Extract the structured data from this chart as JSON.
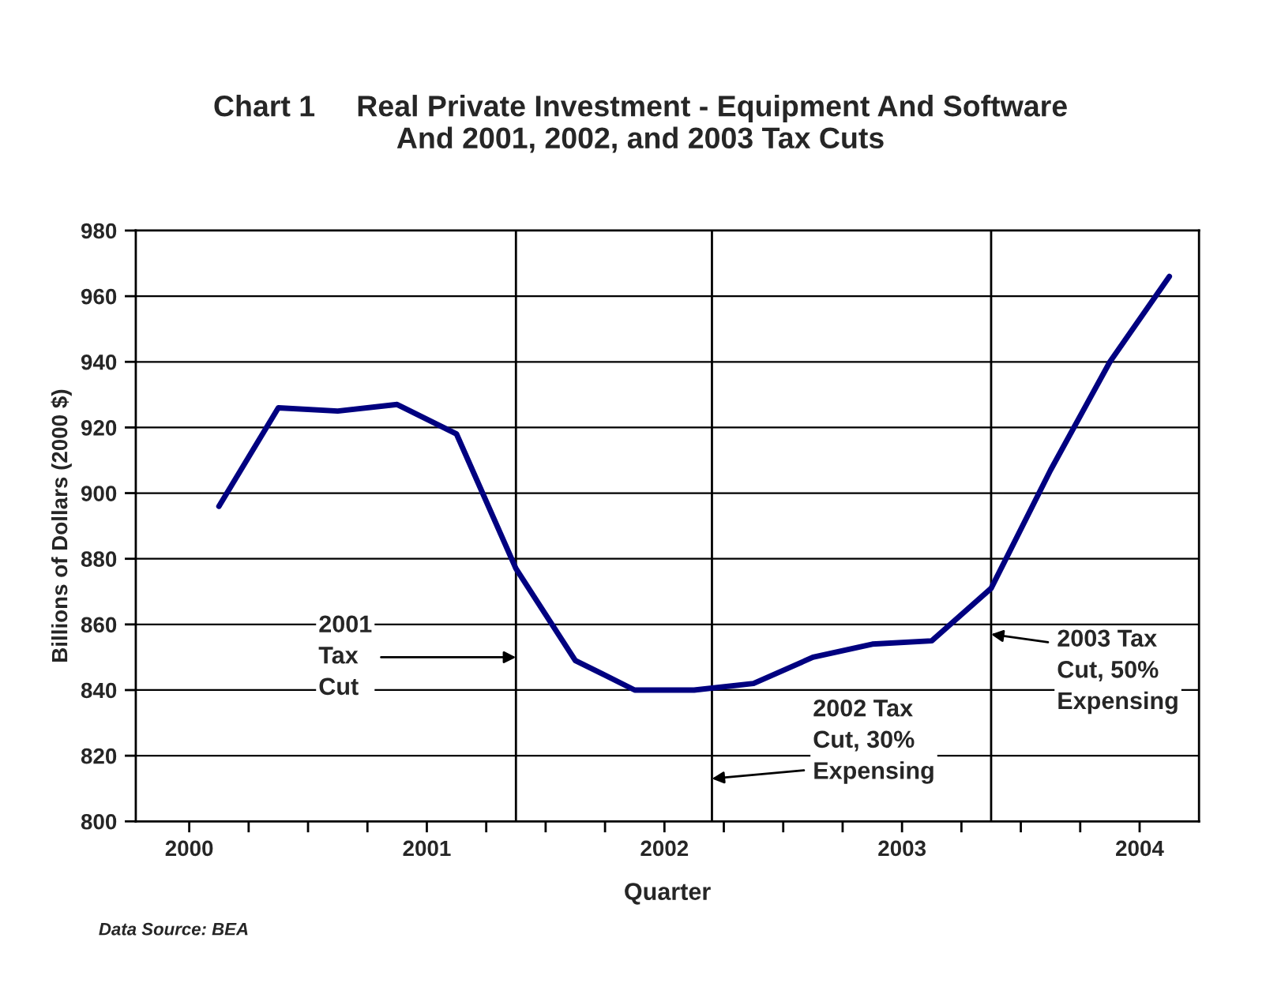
{
  "chart_data": {
    "type": "line",
    "title": "Chart 1     Real Private Investment - Equipment And Software\nAnd 2001, 2002, and 2003 Tax Cuts",
    "xlabel": "Quarter",
    "ylabel": "Billions of Dollars (2000 $)",
    "x": [
      2000.125,
      2000.375,
      2000.625,
      2000.875,
      2001.125,
      2001.375,
      2001.625,
      2001.875,
      2002.125,
      2002.375,
      2002.625,
      2002.875,
      2003.125,
      2003.375,
      2003.625,
      2003.875,
      2004.125
    ],
    "series": [
      {
        "color": "#000080",
        "values": [
          896,
          926,
          925,
          927,
          918,
          877,
          849,
          840,
          840,
          842,
          850,
          854,
          855,
          871,
          907,
          940,
          966
        ]
      }
    ],
    "xlim": [
      1999.775,
      2004.25
    ],
    "xticks": [
      2000,
      {
        "value": 2000.25,
        "label": null
      },
      {
        "value": 2000.5,
        "label": null
      },
      {
        "value": 2000.75,
        "label": null
      },
      2001,
      {
        "value": 2001.25,
        "label": null
      },
      {
        "value": 2001.5,
        "label": null
      },
      {
        "value": 2001.75,
        "label": null
      },
      2002,
      {
        "value": 2002.25,
        "label": null
      },
      {
        "value": 2002.5,
        "label": null
      },
      {
        "value": 2002.75,
        "label": null
      },
      2003,
      {
        "value": 2003.25,
        "label": null
      },
      {
        "value": 2003.5,
        "label": null
      },
      {
        "value": 2003.75,
        "label": null
      },
      2004
    ],
    "ylim": [
      800,
      980
    ],
    "yticks": [
      800,
      820,
      840,
      860,
      880,
      900,
      920,
      940,
      960,
      980
    ],
    "grid": "y",
    "legend": false,
    "marker": "none",
    "line_style": "solid",
    "ref_lines": [
      {
        "axis": "x",
        "value": 2001.375,
        "color": "#000000"
      },
      {
        "axis": "x",
        "value": 2002.2,
        "color": "#000000"
      },
      {
        "axis": "x",
        "value": 2003.375,
        "color": "#000000"
      }
    ],
    "annotations": [
      {
        "text": "2001\nTax\nCut",
        "x": 2001.375,
        "y": 850
      },
      {
        "text": "2002 Tax\nCut, 30%\nExpensing",
        "x": 2002.2,
        "y": 813
      },
      {
        "text": "2003 Tax\nCut, 50%\nExpensing",
        "x": 2003.375,
        "y": 857
      },
      "Data Source: BEA"
    ]
  }
}
